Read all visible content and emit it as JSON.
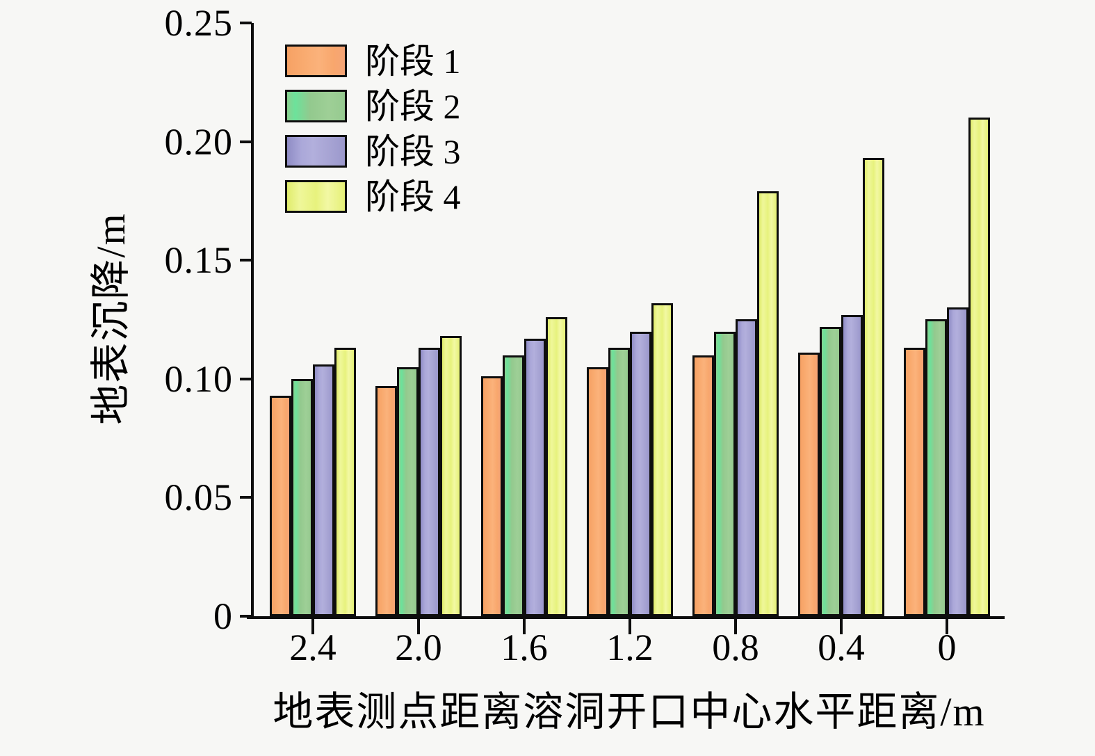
{
  "chart_data": {
    "type": "bar",
    "title": "",
    "xlabel": "地表测点距离溶洞开口中心水平距离/m",
    "ylabel": "地表沉降/m",
    "categories": [
      "2.4",
      "2.0",
      "1.6",
      "1.2",
      "0.8",
      "0.4",
      "0"
    ],
    "series": [
      {
        "name": "阶段 1",
        "color": "#F8A96C",
        "values": [
          0.093,
          0.097,
          0.101,
          0.105,
          0.11,
          0.111,
          0.113
        ]
      },
      {
        "name": "阶段 2",
        "color": "#9BCC92",
        "values": [
          0.1,
          0.105,
          0.11,
          0.113,
          0.12,
          0.122,
          0.125
        ]
      },
      {
        "name": "阶段 3",
        "color": "#A6A3D3",
        "values": [
          0.106,
          0.113,
          0.117,
          0.12,
          0.125,
          0.127,
          0.13
        ]
      },
      {
        "name": "阶段 4",
        "color": "#E9F27F",
        "values": [
          0.113,
          0.118,
          0.126,
          0.132,
          0.179,
          0.193,
          0.21
        ]
      }
    ],
    "ylim": [
      0,
      0.25
    ],
    "yticks": [
      0,
      0.05,
      0.1,
      0.15,
      0.2,
      0.25
    ],
    "ytick_labels": [
      "0",
      "0.05",
      "0.10",
      "0.15",
      "0.20",
      "0.25"
    ],
    "legend_position": "top-left",
    "grid": false,
    "background_color": "#F7F7F5",
    "axis_color": "#0D0D0D",
    "bar_border_color": "#0E0E0E"
  }
}
